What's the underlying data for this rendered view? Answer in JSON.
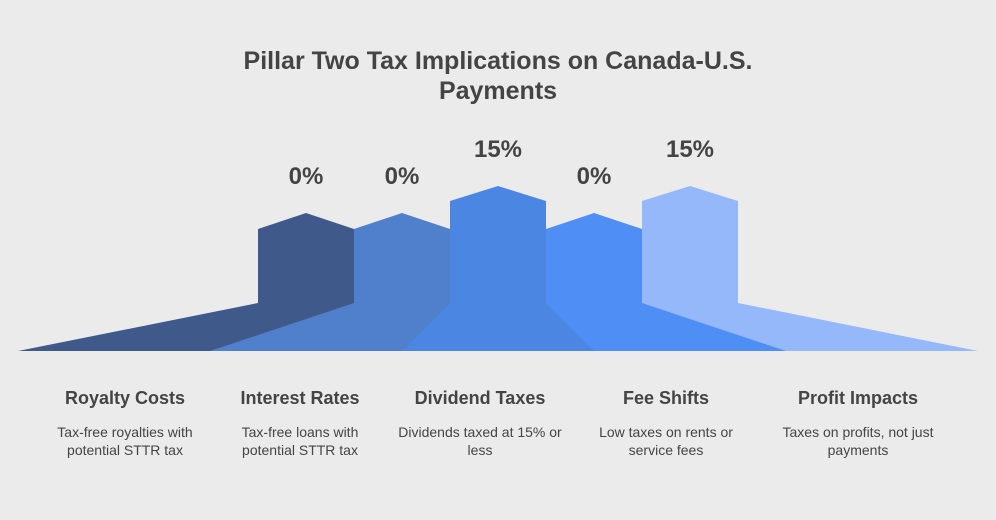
{
  "title": "Pillar Two Tax Implications on Canada-U.S. Payments",
  "items": [
    {
      "value": "0%",
      "heading": "Royalty Costs",
      "description": "Tax-free royalties with potential STTR tax"
    },
    {
      "value": "0%",
      "heading": "Interest Rates",
      "description": "Tax-free loans with potential STTR tax"
    },
    {
      "value": "15%",
      "heading": "Dividend Taxes",
      "description": "Dividends taxed at 15% or less"
    },
    {
      "value": "0%",
      "heading": "Fee Shifts",
      "description": "Low taxes on rents or service fees"
    },
    {
      "value": "15%",
      "heading": "Profit Impacts",
      "description": "Taxes on profits, not just payments"
    }
  ]
}
